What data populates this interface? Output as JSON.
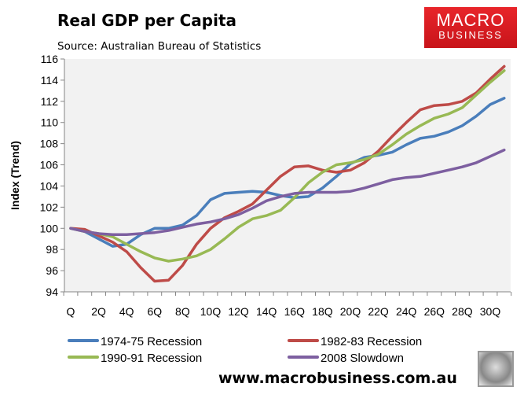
{
  "header": {
    "title": "Real GDP per Capita",
    "subtitle": "Source: Australian Bureau of Statistics"
  },
  "logo": {
    "line1": "MACRO",
    "line2": "BUSINESS"
  },
  "footer": {
    "website": "www.macrobusiness.com.au"
  },
  "chart_data": {
    "type": "line",
    "title": "Real GDP per Capita",
    "xlabel": "",
    "ylabel": "Index (Trend)",
    "ylim": [
      94,
      116
    ],
    "yticks": [
      94,
      96,
      98,
      100,
      102,
      104,
      106,
      108,
      110,
      112,
      114,
      116
    ],
    "x": [
      0,
      1,
      2,
      3,
      4,
      5,
      6,
      7,
      8,
      9,
      10,
      11,
      12,
      13,
      14,
      15,
      16,
      17,
      18,
      19,
      20,
      21,
      22,
      23,
      24,
      25,
      26,
      27,
      28,
      29,
      30,
      31
    ],
    "xtick_labels": [
      "Q",
      "2Q",
      "4Q",
      "6Q",
      "8Q",
      "10Q",
      "12Q",
      "14Q",
      "16Q",
      "18Q",
      "20Q",
      "22Q",
      "24Q",
      "26Q",
      "28Q",
      "30Q"
    ],
    "legend_placement": "bottom",
    "grid": false,
    "series": [
      {
        "name": "1974-75 Recession",
        "color": "#4a7ebb",
        "values": [
          100,
          99.7,
          99.0,
          98.3,
          98.5,
          99.4,
          100,
          100,
          100.3,
          101.2,
          102.7,
          103.3,
          103.4,
          103.5,
          103.4,
          103.1,
          102.9,
          103.0,
          103.8,
          104.9,
          106.1,
          106.7,
          106.9,
          107.2,
          107.9,
          108.5,
          108.7,
          109.1,
          109.7,
          110.6,
          111.7,
          112.3
        ]
      },
      {
        "name": "1982-83 Recession",
        "color": "#be4b48",
        "values": [
          100,
          99.9,
          99.3,
          98.7,
          97.8,
          96.3,
          95.0,
          95.1,
          96.5,
          98.5,
          100.0,
          101.0,
          101.6,
          102.3,
          103.6,
          104.9,
          105.8,
          105.9,
          105.5,
          105.3,
          105.5,
          106.2,
          107.3,
          108.7,
          110.0,
          111.2,
          111.6,
          111.7,
          112.0,
          112.8,
          114.1,
          115.3
        ]
      },
      {
        "name": "1990-91 Recession",
        "color": "#98b954",
        "values": [
          100,
          99.7,
          99.5,
          99.2,
          98.5,
          97.8,
          97.2,
          96.9,
          97.1,
          97.4,
          98.0,
          99.0,
          100.1,
          100.9,
          101.2,
          101.7,
          102.9,
          104.3,
          105.3,
          106.0,
          106.2,
          106.5,
          107.0,
          107.9,
          108.9,
          109.7,
          110.4,
          110.8,
          111.4,
          112.6,
          113.8,
          114.9
        ]
      },
      {
        "name": "2008 Slowdown",
        "color": "#7d5fa0",
        "values": [
          100,
          99.7,
          99.5,
          99.4,
          99.4,
          99.5,
          99.6,
          99.8,
          100.1,
          100.4,
          100.6,
          100.9,
          101.3,
          101.9,
          102.6,
          103.0,
          103.3,
          103.4,
          103.4,
          103.4,
          103.5,
          103.8,
          104.2,
          104.6,
          104.8,
          104.9,
          105.2,
          105.5,
          105.8,
          106.2,
          106.8,
          107.4
        ]
      }
    ]
  }
}
